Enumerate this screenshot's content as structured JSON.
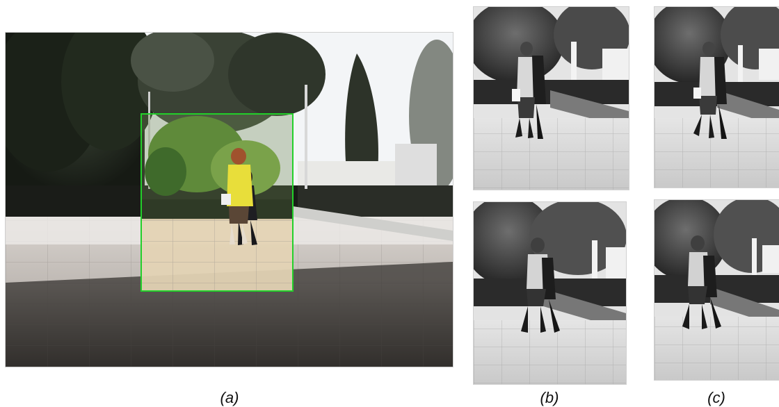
{
  "captions": {
    "a": "(a)",
    "b": "(b)",
    "c": "(c)"
  },
  "colors": {
    "bounding_box": "#22d02a",
    "jacket": "#e8de3a",
    "sky": "#f4f6f8"
  },
  "panels": {
    "a": {
      "type": "color-photo",
      "scene": "street-walking"
    },
    "b": {
      "type": "grayscale-crop-sequence",
      "frames": 2
    },
    "c": {
      "type": "grayscale-crop-sequence",
      "frames": 2
    }
  }
}
